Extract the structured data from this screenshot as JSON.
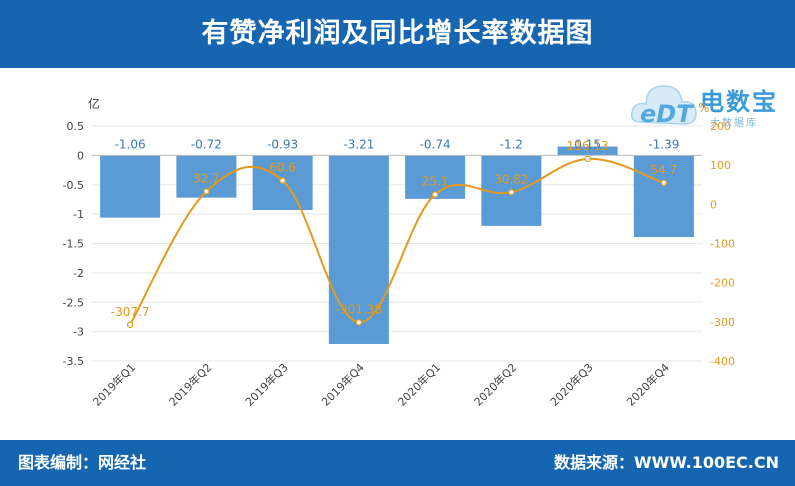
{
  "header": {
    "title": "有赞净利润及同比增长率数据图"
  },
  "footer": {
    "left": "图表编制：网经社",
    "right": "数据来源：WWW.100EC.CN"
  },
  "logo": {
    "edt": "eDT",
    "brand": "电数宝",
    "sub": "大数据库"
  },
  "colors": {
    "bar": "#5b9bd5",
    "line": "#e39a1c",
    "banner": "#1565b0"
  },
  "chart_data": {
    "type": "bar",
    "categories": [
      "2019年Q1",
      "2019年Q2",
      "2019年Q3",
      "2019年Q4",
      "2020年Q1",
      "2020年Q2",
      "2020年Q3",
      "2020年Q4"
    ],
    "series": [
      {
        "type": "bar",
        "axis": "left",
        "values": [
          -1.06,
          -0.72,
          -0.93,
          -3.21,
          -0.74,
          -1.2,
          0.15,
          -1.39
        ],
        "labels": [
          "-1.06",
          "-0.72",
          "-0.93",
          "-3.21",
          "-0.74",
          "-1.2",
          "0.15",
          "-1.39"
        ]
      },
      {
        "type": "line",
        "axis": "right",
        "values": [
          -307.7,
          32.7,
          60.6,
          -301.38,
          25.1,
          30.82,
          116.13,
          54.7
        ],
        "labels": [
          "-307.7",
          "32.7",
          "60.6",
          "-301.38",
          "25.1",
          "30.82",
          "116.13",
          "54.7"
        ]
      }
    ],
    "y_left": {
      "unit": "亿",
      "ylim": [
        -3.5,
        0.5
      ],
      "ticks": [
        0.5,
        0,
        -0.5,
        -1,
        -1.5,
        -2,
        -2.5,
        -3,
        -3.5
      ],
      "tick_labels": [
        "0.5",
        "0",
        "-0.5",
        "-1",
        "-1.5",
        "-2",
        "-2.5",
        "-3",
        "-3.5"
      ]
    },
    "y_right": {
      "unit": "%",
      "ylim": [
        -400,
        200
      ],
      "ticks": [
        200,
        100,
        0,
        -100,
        -200,
        -300,
        -400
      ],
      "tick_labels": [
        "200",
        "100",
        "0",
        "-100",
        "-200",
        "-300",
        "-400"
      ]
    },
    "grid": true
  }
}
